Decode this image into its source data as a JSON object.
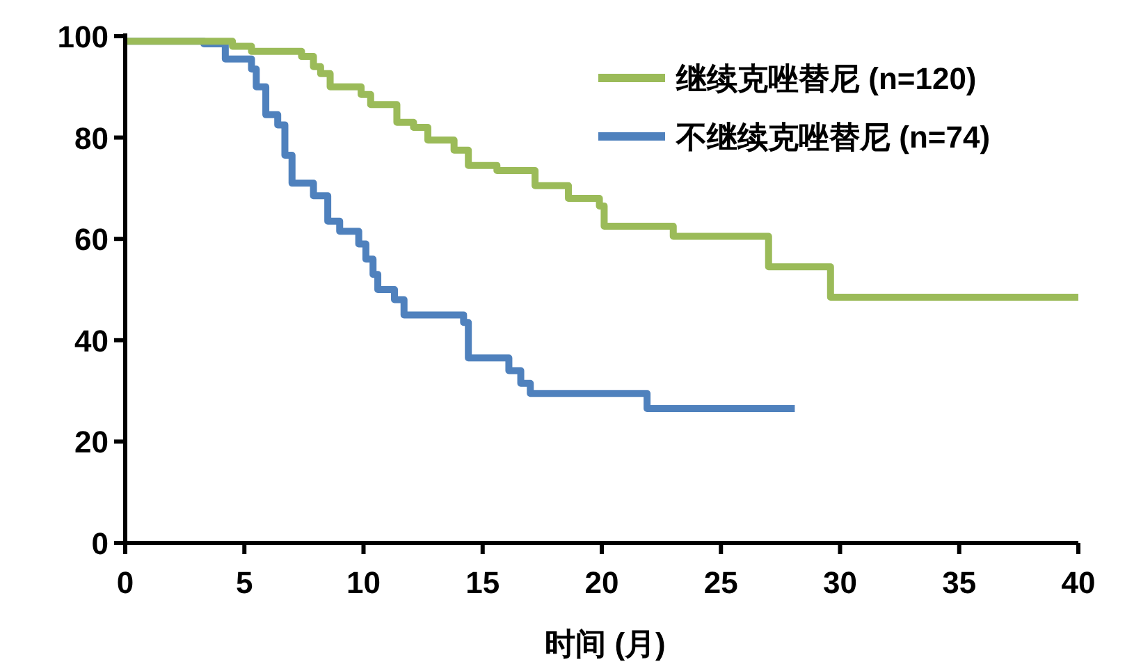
{
  "chart_data": {
    "type": "step",
    "xlabel": "时间 (月)",
    "xlim": [
      0,
      40
    ],
    "xticks": [
      0,
      5,
      10,
      15,
      20,
      25,
      30,
      35,
      40
    ],
    "ylim": [
      0,
      100
    ],
    "yticks": [
      0,
      20,
      40,
      60,
      80,
      100
    ],
    "grid": false,
    "legend": "top right",
    "marker": "none",
    "line_style": "solid",
    "series": [
      {
        "name": "继续克唑替尼 (n=120)",
        "color": "#9bbb59",
        "x": [
          0,
          4.5,
          5.3,
          7.4,
          7.9,
          8.2,
          8.6,
          9.9,
          10.3,
          11.4,
          12.1,
          12.7,
          13.8,
          14.4,
          15.6,
          17.2,
          18.6,
          19.9,
          20.1,
          23.0,
          27.0,
          29.6,
          40
        ],
        "values": [
          99,
          98,
          97,
          96,
          94,
          92.6,
          90,
          88.5,
          86.5,
          83,
          82,
          79.5,
          77.5,
          74.5,
          73.5,
          70.5,
          68,
          66.5,
          62.5,
          60.5,
          54.5,
          48.5,
          48.5
        ]
      },
      {
        "name": "不继续克唑替尼 (n=74)",
        "color": "#4f81bd",
        "x": [
          0,
          3.3,
          4.2,
          5.3,
          5.5,
          5.9,
          6.4,
          6.7,
          7.0,
          7.9,
          8.5,
          9.0,
          9.8,
          10.1,
          10.4,
          10.6,
          11.3,
          11.7,
          14.2,
          14.4,
          16.1,
          16.6,
          17.0,
          21.9,
          28.1
        ],
        "values": [
          99,
          98.5,
          95.5,
          93.5,
          90,
          84.5,
          82.5,
          76.5,
          71,
          68.5,
          63.5,
          61.5,
          59,
          56,
          53,
          50,
          48,
          45,
          43.5,
          36.5,
          34,
          31.5,
          29.5,
          26.5,
          26.5
        ]
      }
    ]
  }
}
